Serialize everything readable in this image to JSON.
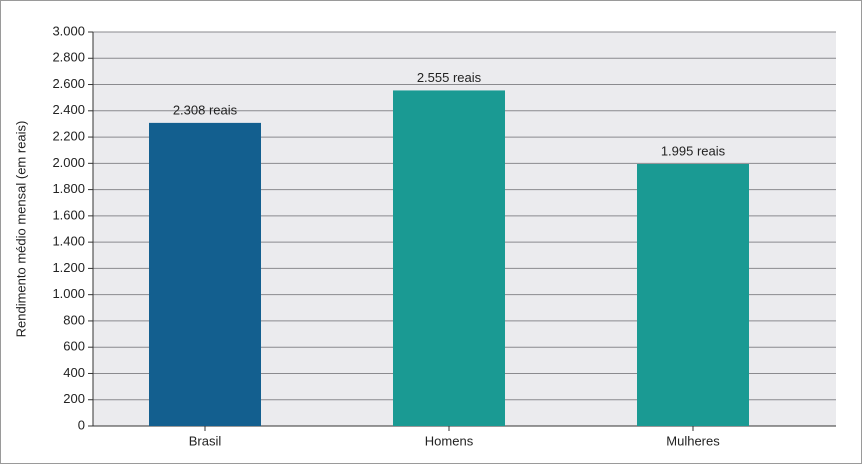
{
  "chart_data": {
    "type": "bar",
    "y_axis_label": "Rendimento médio mensal (em reais)",
    "categories": [
      "Brasil",
      "Homens",
      "Mulheres"
    ],
    "values": [
      2308,
      2555,
      1995
    ],
    "value_labels": [
      "2.308 reais",
      "2.555 reais",
      "1.995 reais"
    ],
    "colors": [
      "#135f8f",
      "#1a9a93",
      "#1a9a93"
    ],
    "ylim": [
      0,
      3000
    ],
    "yticks": [
      0,
      200,
      400,
      600,
      800,
      {
        "value": 1000,
        "label": "1.000"
      },
      {
        "value": 1200,
        "label": "1.200"
      },
      {
        "value": 1400,
        "label": "1.400"
      },
      {
        "value": 1600,
        "label": "1.600"
      },
      {
        "value": 1800,
        "label": "1.800"
      },
      {
        "value": 2000,
        "label": "2.000"
      },
      {
        "value": 2200,
        "label": "2.200"
      },
      {
        "value": 2400,
        "label": "2.400"
      },
      {
        "value": 2600,
        "label": "2.600"
      },
      {
        "value": 2800,
        "label": "2.800"
      },
      {
        "value": 3000,
        "label": "3.000"
      }
    ],
    "grid": true
  }
}
